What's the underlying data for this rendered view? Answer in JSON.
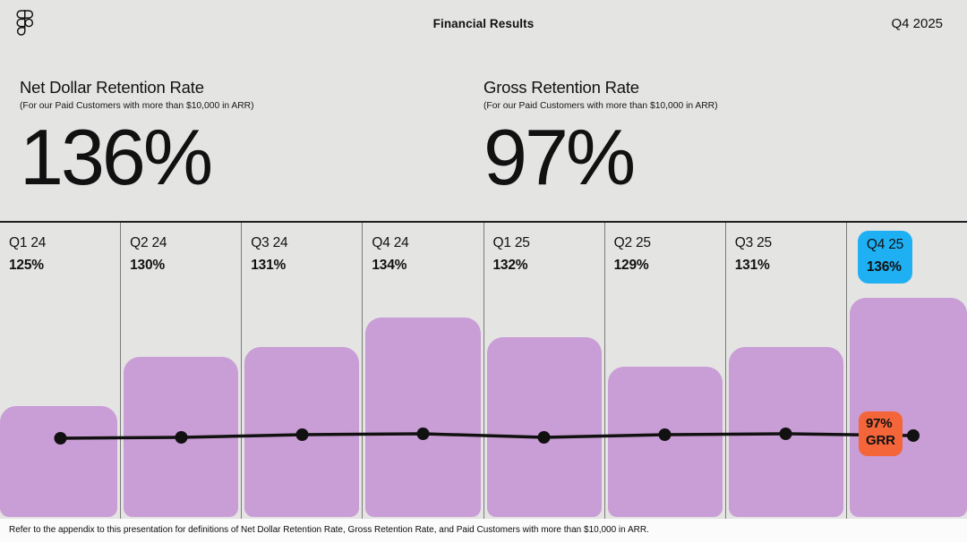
{
  "header": {
    "title": "Financial Results",
    "period": "Q4 2025",
    "logo": "figma-logo"
  },
  "stats": [
    {
      "title": "Net Dollar Retention Rate",
      "subtitle": "(For our Paid Customers with more than $10,000 in ARR)",
      "value": "136%"
    },
    {
      "title": "Gross Retention Rate",
      "subtitle": "(For our Paid Customers with more than $10,000 in ARR)",
      "value": "97%"
    }
  ],
  "chart_data": {
    "type": "bar+line",
    "categories": [
      "Q1 24",
      "Q2 24",
      "Q3 24",
      "Q4 24",
      "Q1 25",
      "Q2 25",
      "Q3 25",
      "Q4 25"
    ],
    "series": [
      {
        "name": "Net Dollar Retention Rate",
        "type": "bar",
        "values": [
          125,
          130,
          131,
          134,
          132,
          129,
          131,
          136
        ]
      },
      {
        "name": "Gross Retention Rate",
        "type": "line",
        "values": [
          97,
          97,
          97,
          97,
          97,
          97,
          97,
          97
        ]
      }
    ],
    "highlight_category": "Q4 25",
    "grr_badge": {
      "line1": "97%",
      "line2": "GRR"
    },
    "legend": "none",
    "gridlines": "vertical column separators only",
    "colors": {
      "bar": "#C99DD5",
      "highlight_blue": "#1EB0F3",
      "badge_orange": "#F5653A",
      "line": "#111111",
      "background": "#E4E4E3"
    }
  },
  "footer": {
    "note": "Refer to the appendix to this presentation for definitions of Net Dollar Retention Rate, Gross Retention Rate,  and Paid Customers with more than $10,000 in ARR."
  }
}
